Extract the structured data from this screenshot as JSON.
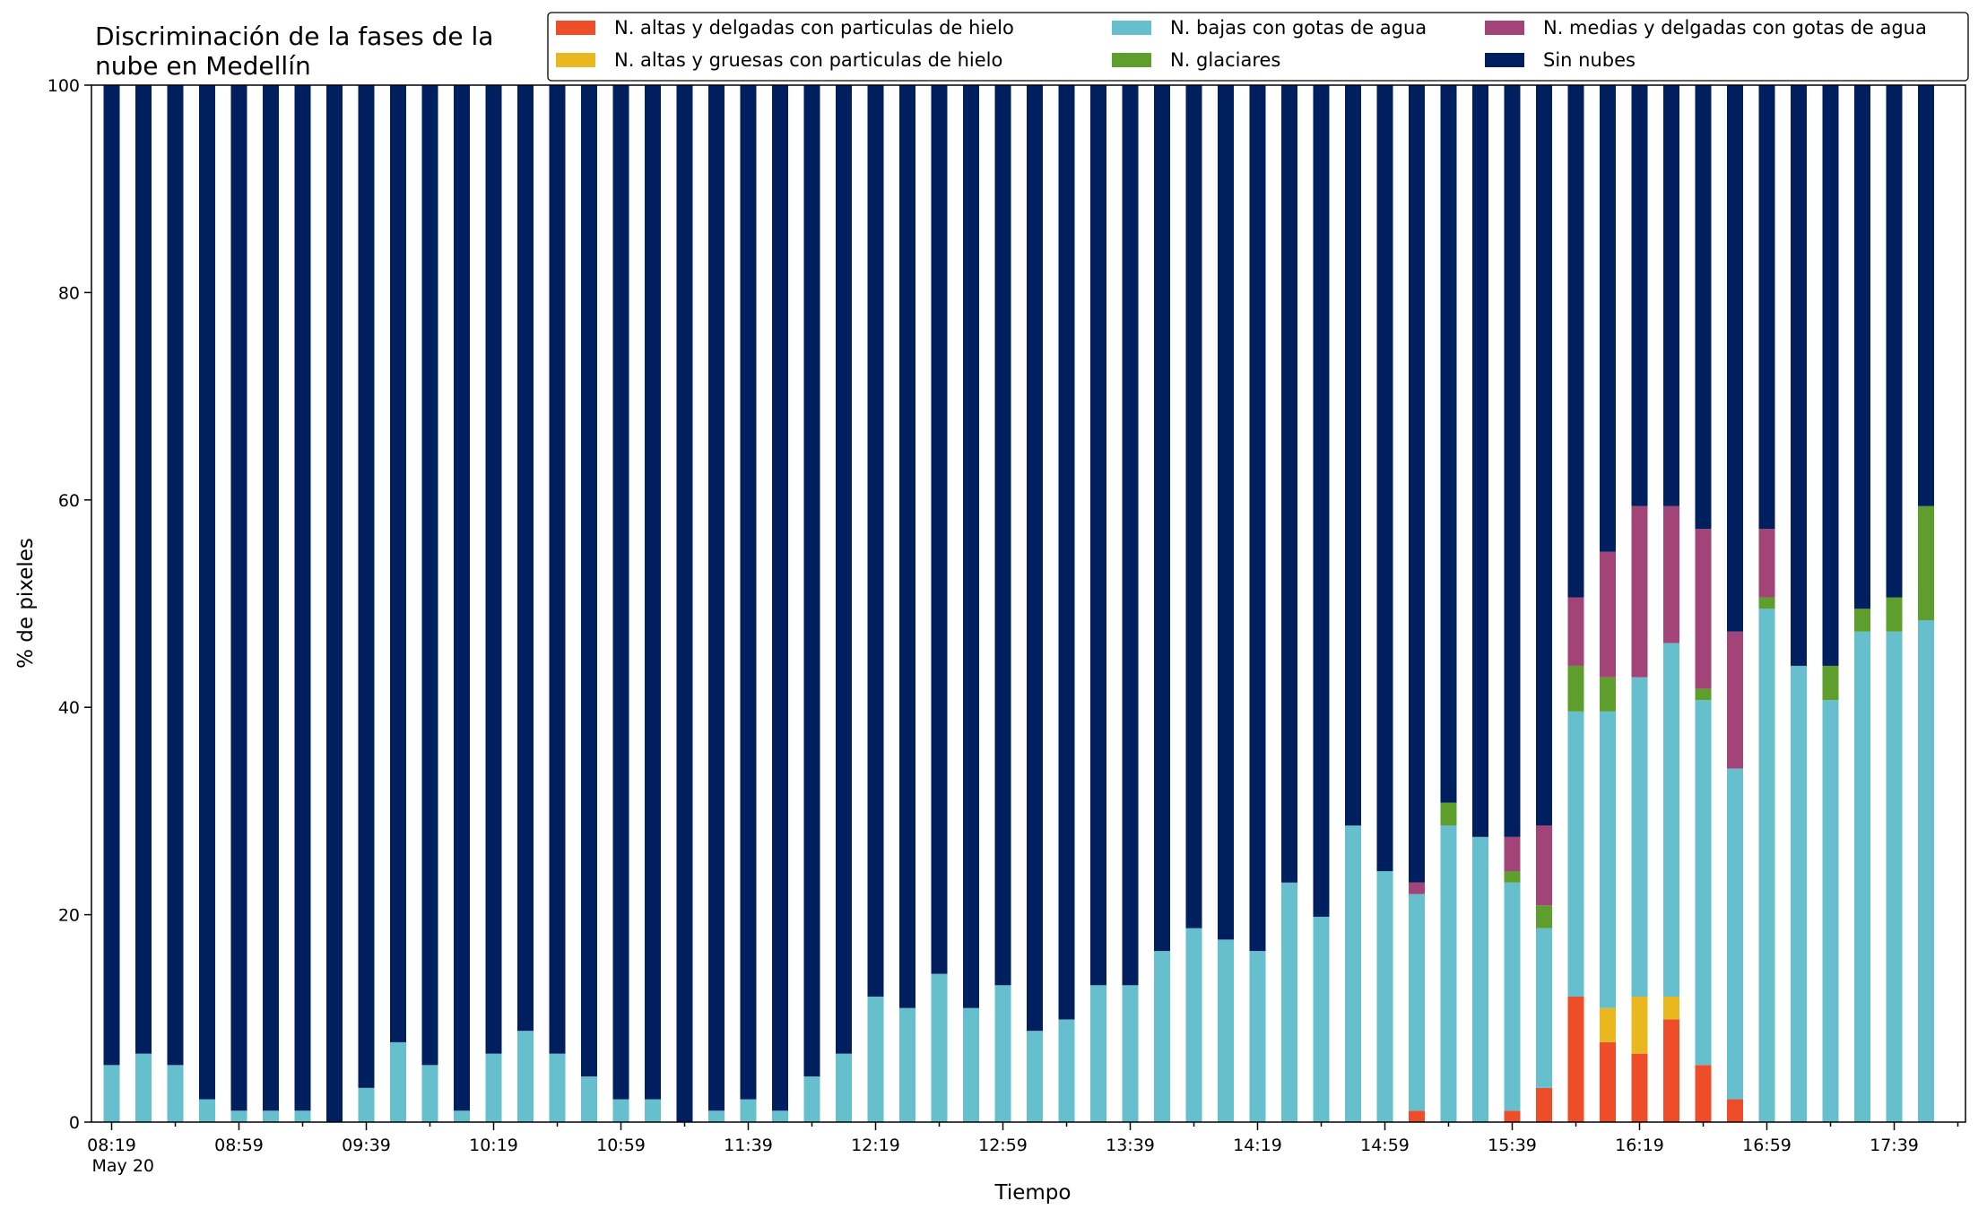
{
  "chart_data": {
    "type": "bar",
    "stacked": true,
    "title": "Discriminación de la fases de la\nnube en Medellín",
    "xlabel": "Tiempo",
    "ylabel": "% de pixeles",
    "ylim": [
      0,
      100
    ],
    "yticks": [
      0,
      20,
      40,
      60,
      80,
      100
    ],
    "legend_position": "top-right",
    "legend_columns": 3,
    "x_tick_labels": [
      "08:19\nMay 20",
      "08:59",
      "09:39",
      "10:19",
      "10:59",
      "11:39",
      "12:19",
      "12:59",
      "13:39",
      "14:19",
      "14:59",
      "15:39",
      "16:19",
      "16:59",
      "17:39"
    ],
    "categories": [
      "08:19",
      "08:29",
      "08:39",
      "08:49",
      "08:59",
      "09:09",
      "09:19",
      "09:29",
      "09:39",
      "09:49",
      "09:59",
      "10:09",
      "10:19",
      "10:29",
      "10:39",
      "10:49",
      "10:59",
      "11:09",
      "11:19",
      "11:29",
      "11:39",
      "11:49",
      "11:59",
      "12:09",
      "12:19",
      "12:29",
      "12:39",
      "12:49",
      "12:59",
      "13:09",
      "13:19",
      "13:29",
      "13:39",
      "13:49",
      "13:59",
      "14:09",
      "14:19",
      "14:29",
      "14:39",
      "14:49",
      "14:59",
      "15:09",
      "15:19",
      "15:29",
      "15:39",
      "15:49",
      "15:59",
      "16:09",
      "16:19",
      "16:29",
      "16:39",
      "16:49",
      "16:59",
      "17:09",
      "17:19",
      "17:29",
      "17:39",
      "17:49"
    ],
    "series": [
      {
        "name": "N. altas y delgadas con particulas de hielo",
        "color": "#ee4d2a",
        "values": [
          0,
          0,
          0,
          0,
          0,
          0,
          0,
          0,
          0,
          0,
          0,
          0,
          0,
          0,
          0,
          0,
          0,
          0,
          0,
          0,
          0,
          0,
          0,
          0,
          0,
          0,
          0,
          0,
          0,
          0,
          0,
          0,
          0,
          0,
          0,
          0,
          0,
          0,
          0,
          0,
          0,
          1.1,
          0,
          0,
          1.1,
          3.3,
          12.1,
          7.7,
          6.6,
          9.9,
          5.5,
          2.2,
          0,
          0,
          0,
          0,
          0,
          0
        ]
      },
      {
        "name": "N. altas y gruesas con particulas de hielo",
        "color": "#e8b81e",
        "values": [
          0,
          0,
          0,
          0,
          0,
          0,
          0,
          0,
          0,
          0,
          0,
          0,
          0,
          0,
          0,
          0,
          0,
          0,
          0,
          0,
          0,
          0,
          0,
          0,
          0,
          0,
          0,
          0,
          0,
          0,
          0,
          0,
          0,
          0,
          0,
          0,
          0,
          0,
          0,
          0,
          0,
          0,
          0,
          0,
          0,
          0,
          0,
          3.3,
          5.5,
          2.2,
          0,
          0,
          0,
          0,
          0,
          0,
          0,
          0
        ]
      },
      {
        "name": "N. bajas con gotas de agua",
        "color": "#66bfcc",
        "values": [
          5.5,
          6.6,
          5.5,
          2.2,
          1.1,
          1.1,
          1.1,
          0,
          3.3,
          7.7,
          5.5,
          1.1,
          6.6,
          8.8,
          6.6,
          4.4,
          2.2,
          2.2,
          0,
          1.1,
          2.2,
          1.1,
          4.4,
          6.6,
          12.1,
          11.0,
          14.3,
          11.0,
          13.2,
          8.8,
          9.9,
          13.2,
          13.2,
          16.5,
          18.7,
          17.6,
          16.5,
          23.1,
          19.8,
          28.6,
          24.2,
          20.9,
          28.6,
          27.5,
          22.0,
          15.4,
          27.5,
          28.6,
          30.8,
          34.1,
          35.2,
          31.9,
          49.5,
          44.0,
          40.7,
          47.3,
          47.3,
          48.4
        ]
      },
      {
        "name": "N. glaciares",
        "color": "#5e9e2c",
        "values": [
          0,
          0,
          0,
          0,
          0,
          0,
          0,
          0,
          0,
          0,
          0,
          0,
          0,
          0,
          0,
          0,
          0,
          0,
          0,
          0,
          0,
          0,
          0,
          0,
          0,
          0,
          0,
          0,
          0,
          0,
          0,
          0,
          0,
          0,
          0,
          0,
          0,
          0,
          0,
          0,
          0,
          0,
          2.2,
          0,
          1.1,
          2.2,
          4.4,
          3.3,
          0,
          0,
          1.1,
          0,
          1.1,
          0,
          3.3,
          2.2,
          3.3,
          11.0
        ]
      },
      {
        "name": "N. medias y delgadas con gotas de agua",
        "color": "#a34479",
        "values": [
          0,
          0,
          0,
          0,
          0,
          0,
          0,
          0,
          0,
          0,
          0,
          0,
          0,
          0,
          0,
          0,
          0,
          0,
          0,
          0,
          0,
          0,
          0,
          0,
          0,
          0,
          0,
          0,
          0,
          0,
          0,
          0,
          0,
          0,
          0,
          0,
          0,
          0,
          0,
          0,
          0,
          1.1,
          0,
          0,
          3.3,
          7.7,
          6.6,
          12.1,
          16.5,
          13.2,
          15.4,
          13.2,
          6.6,
          0,
          0,
          0,
          0,
          0
        ]
      },
      {
        "name": "Sin nubes",
        "color": "#001f5f",
        "values": [
          94.5,
          93.4,
          94.5,
          97.8,
          98.9,
          98.9,
          98.9,
          100,
          96.7,
          92.3,
          94.5,
          98.9,
          93.4,
          91.2,
          93.4,
          95.6,
          97.8,
          97.8,
          100,
          98.9,
          97.8,
          98.9,
          95.6,
          93.4,
          87.9,
          89.0,
          85.7,
          89.0,
          86.8,
          91.2,
          90.1,
          86.8,
          86.8,
          83.5,
          81.3,
          82.4,
          83.5,
          76.9,
          80.2,
          71.4,
          75.8,
          76.9,
          69.2,
          72.5,
          72.5,
          71.4,
          49.4,
          45.0,
          40.6,
          40.6,
          42.8,
          52.7,
          42.8,
          56.0,
          56.0,
          50.5,
          49.4,
          40.6
        ]
      }
    ]
  }
}
